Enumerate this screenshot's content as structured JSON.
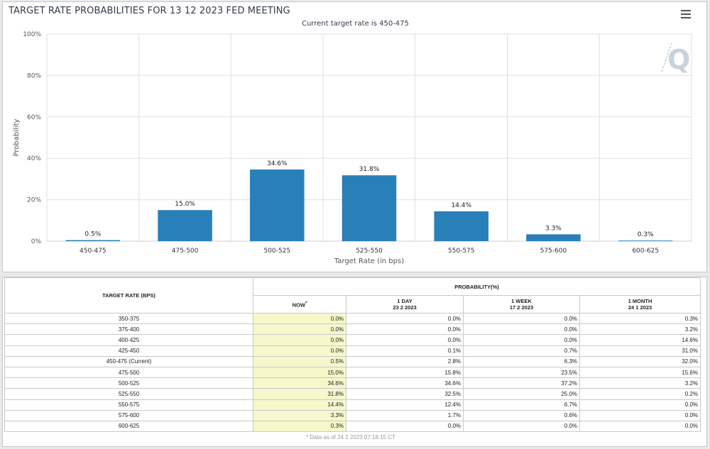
{
  "title": "TARGET RATE PROBABILITIES FOR 13 12 2023 FED MEETING",
  "subtitle": "Current target rate is 450-475",
  "chart_data": {
    "type": "bar",
    "categories": [
      "450-475",
      "475-500",
      "500-525",
      "525-550",
      "550-575",
      "575-600",
      "600-625"
    ],
    "values": [
      0.5,
      15.0,
      34.6,
      31.8,
      14.4,
      3.3,
      0.3
    ],
    "data_labels": [
      "0.5%",
      "15.0%",
      "34.6%",
      "31.8%",
      "14.4%",
      "3.3%",
      "0.3%"
    ],
    "xlabel": "Target Rate (in bps)",
    "ylabel": "Probability",
    "ylim": [
      0,
      100
    ],
    "yticks": [
      "0%",
      "20%",
      "40%",
      "60%",
      "80%",
      "100%"
    ],
    "grid": true,
    "bar_color": "#2980b9"
  },
  "table": {
    "target_header": "TARGET RATE (BPS)",
    "prob_header": "PROBABILITY(%)",
    "columns": [
      {
        "label": "NOW",
        "sup": "*",
        "sub": ""
      },
      {
        "label": "1 DAY",
        "sup": "",
        "sub": "23 2 2023"
      },
      {
        "label": "1 WEEK",
        "sup": "",
        "sub": "17 2 2023"
      },
      {
        "label": "1 MONTH",
        "sup": "",
        "sub": "24 1 2023"
      }
    ],
    "rows": [
      {
        "rate": "350-375",
        "now": "0.0%",
        "day": "0.0%",
        "week": "0.0%",
        "month": "0.3%"
      },
      {
        "rate": "375-400",
        "now": "0.0%",
        "day": "0.0%",
        "week": "0.0%",
        "month": "3.2%"
      },
      {
        "rate": "400-425",
        "now": "0.0%",
        "day": "0.0%",
        "week": "0.0%",
        "month": "14.6%"
      },
      {
        "rate": "425-450",
        "now": "0.0%",
        "day": "0.1%",
        "week": "0.7%",
        "month": "31.0%"
      },
      {
        "rate": "450-475 (Current)",
        "now": "0.5%",
        "day": "2.8%",
        "week": "6.3%",
        "month": "32.0%"
      },
      {
        "rate": "475-500",
        "now": "15.0%",
        "day": "15.8%",
        "week": "23.5%",
        "month": "15.6%"
      },
      {
        "rate": "500-525",
        "now": "34.6%",
        "day": "34.6%",
        "week": "37.2%",
        "month": "3.2%"
      },
      {
        "rate": "525-550",
        "now": "31.8%",
        "day": "32.5%",
        "week": "25.0%",
        "month": "0.2%"
      },
      {
        "rate": "550-575",
        "now": "14.4%",
        "day": "12.4%",
        "week": "6.7%",
        "month": "0.0%"
      },
      {
        "rate": "575-600",
        "now": "3.3%",
        "day": "1.7%",
        "week": "0.6%",
        "month": "0.0%"
      },
      {
        "rate": "600-625",
        "now": "0.3%",
        "day": "0.0%",
        "week": "0.0%",
        "month": "0.0%"
      }
    ],
    "footnote": "* Data as of 24 2 2023 07:18:15 CT"
  },
  "icons": {
    "menu": "hamburger-menu-icon",
    "watermark": "q-logo-icon"
  }
}
